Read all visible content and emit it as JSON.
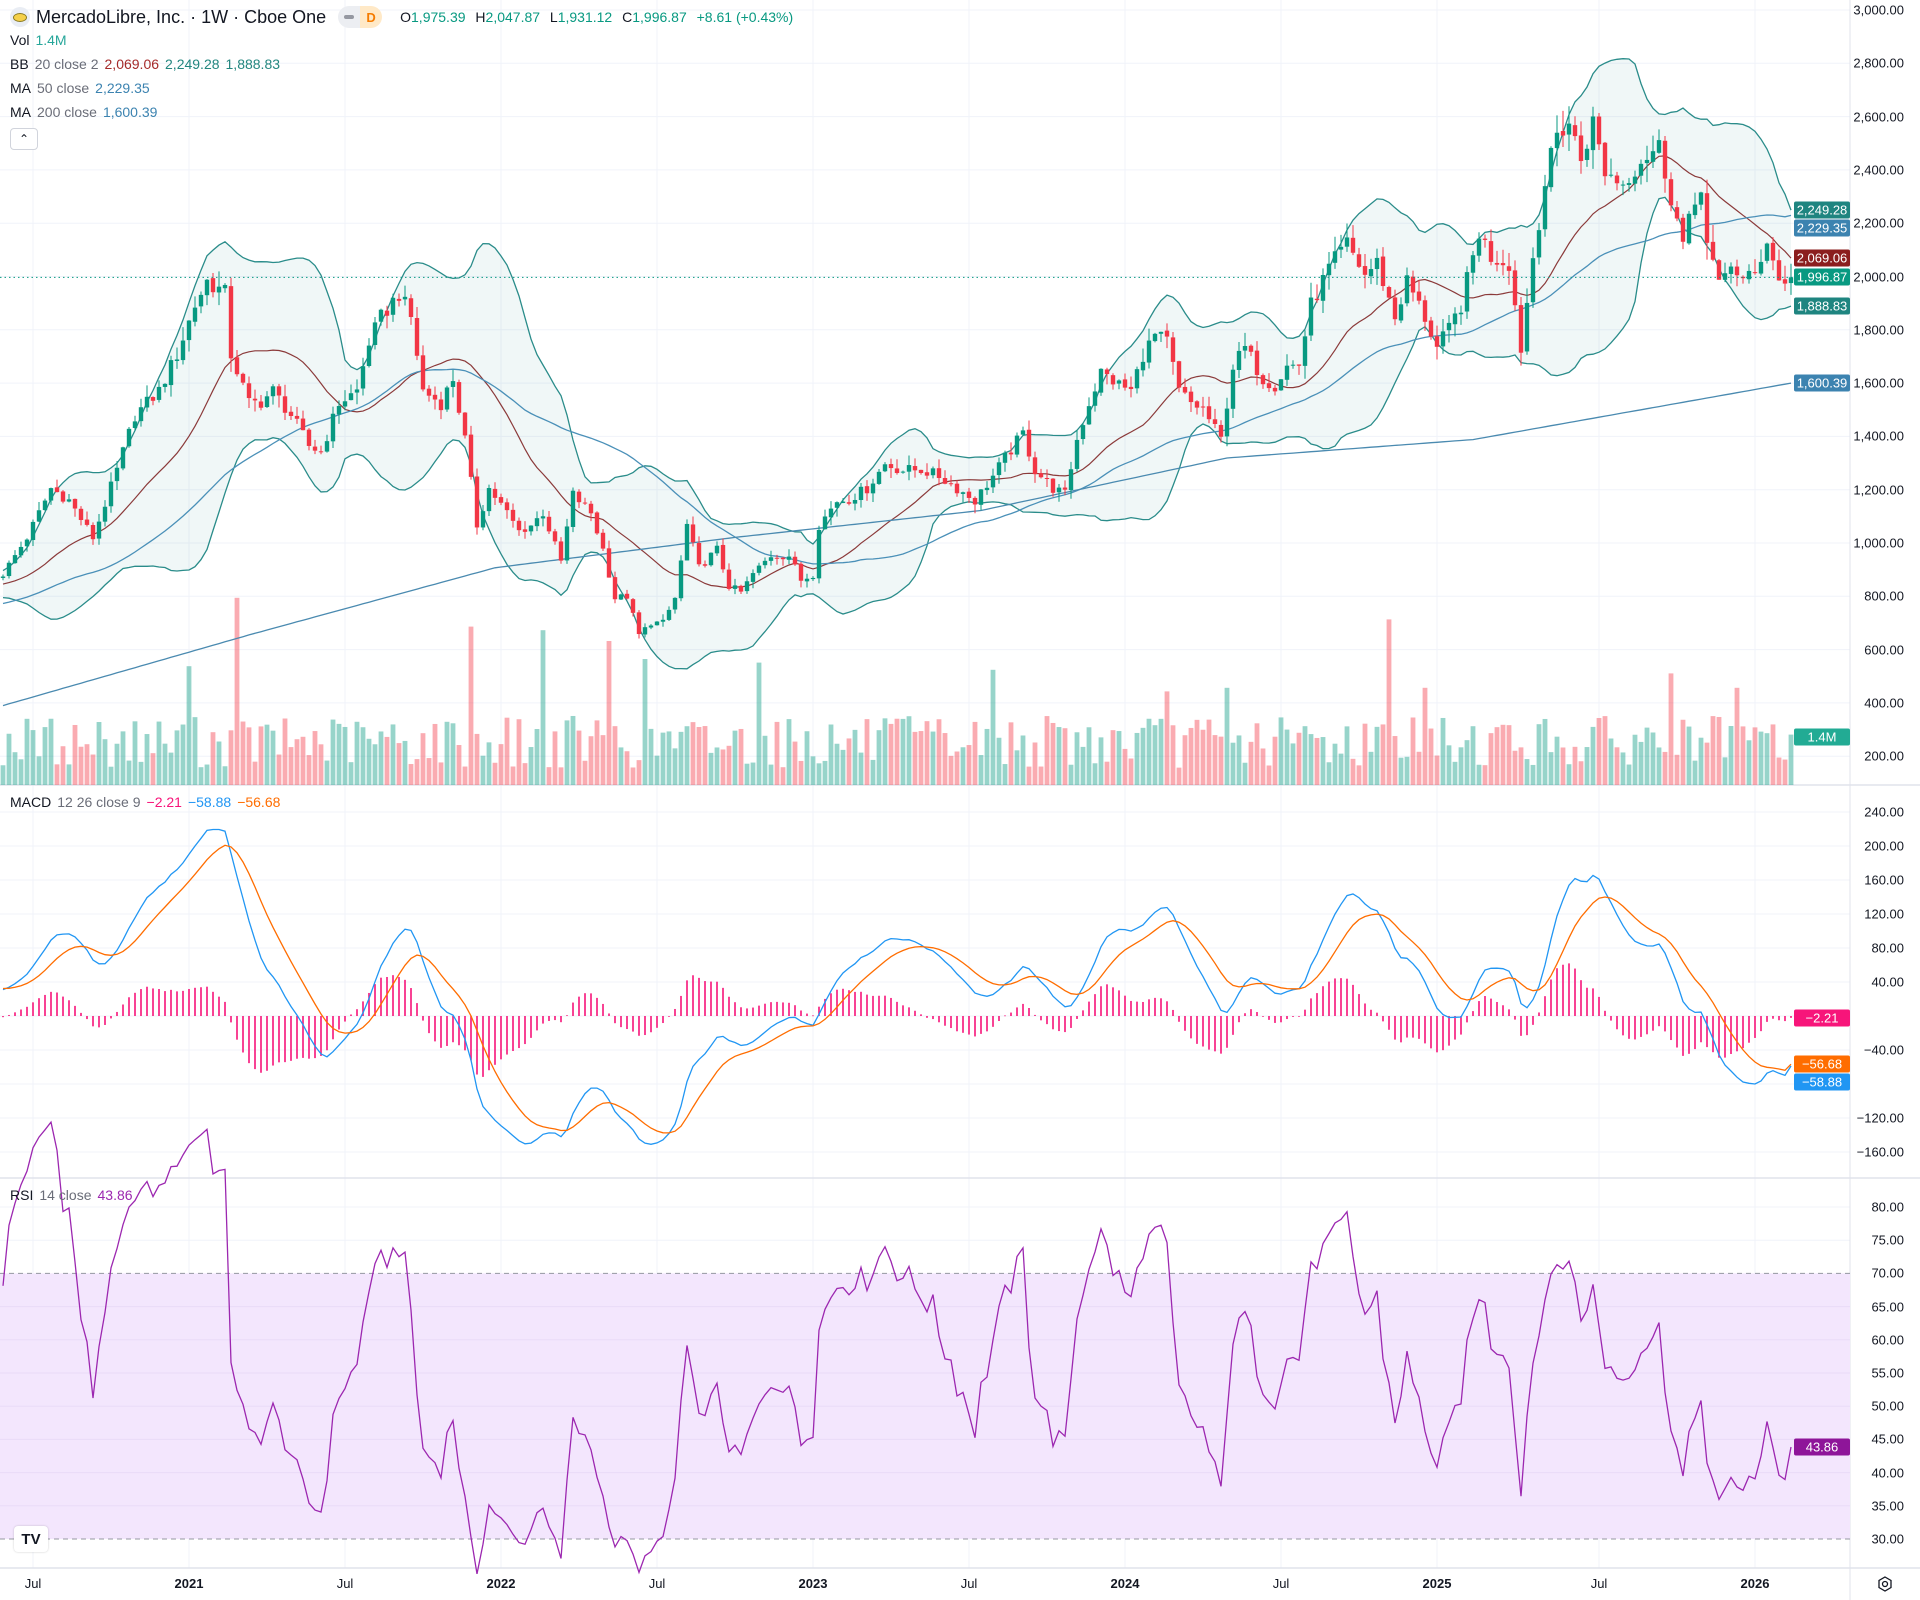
{
  "header": {
    "symbol_title": "MercadoLibre, Inc. · 1W · Cboe One",
    "badge_letter": "D",
    "open_label": "O",
    "open": "1,975.39",
    "high_label": "H",
    "high": "2,047.87",
    "low_label": "L",
    "low": "1,931.12",
    "close_label": "C",
    "close": "1,996.87",
    "change": "+8.61 (+0.43%)"
  },
  "legends": {
    "vol": {
      "name": "Vol",
      "value": "1.4M"
    },
    "bb": {
      "name": "BB",
      "params": "20 close 2",
      "basis": "2,069.06",
      "upper": "2,249.28",
      "lower": "1,888.83"
    },
    "ma50": {
      "name": "MA",
      "params": "50 close",
      "value": "2,229.35"
    },
    "ma200": {
      "name": "MA",
      "params": "200 close",
      "value": "1,600.39"
    },
    "macd": {
      "name": "MACD",
      "params": "12 26 close 9",
      "hist": "−2.21",
      "macd": "−58.88",
      "signal": "−56.68"
    },
    "rsi": {
      "name": "RSI",
      "params": "14 close",
      "value": "43.86"
    }
  },
  "collapse_icon": "chevron-up-icon",
  "tv_logo_text": "TV",
  "colors": {
    "up": "#089981",
    "down": "#F23645",
    "bb_band": "#2a8c8a",
    "bb_basis": "#8b3a3a",
    "bb_fill": "#f1f8f8",
    "ma50": "#4a90b8",
    "ma200": "#4a8ab0",
    "macd": "#2196F3",
    "signal": "#FF6D00",
    "hist": "#F7157A",
    "rsi": "#9C27B0",
    "rsi_band": "#f3e6fd"
  },
  "chart_data": [
    {
      "type": "candlestick",
      "title": "MercadoLibre, Inc. · 1W · Cboe One",
      "interval": "1W",
      "y_axis_ticks": [
        "3,000.00",
        "2,800.00",
        "2,600.00",
        "2,400.00",
        "2,200.00",
        "2,000.00",
        "1,800.00",
        "1,600.00",
        "1,400.00",
        "1,200.00",
        "1,000.00",
        "800.00",
        "600.00",
        "400.00",
        "200.00"
      ],
      "ylim": [
        200,
        3000
      ],
      "x_axis_ticks": [
        {
          "label": "Jul",
          "week": 5,
          "year": false
        },
        {
          "label": "2021",
          "week": 31,
          "year": true
        },
        {
          "label": "Jul",
          "week": 57,
          "year": false
        },
        {
          "label": "2022",
          "week": 83,
          "year": true
        },
        {
          "label": "Jul",
          "week": 109,
          "year": false
        },
        {
          "label": "2023",
          "week": 135,
          "year": true
        },
        {
          "label": "Jul",
          "week": 161,
          "year": false
        },
        {
          "label": "2024",
          "week": 187,
          "year": true
        },
        {
          "label": "Jul",
          "week": 213,
          "year": false
        },
        {
          "label": "2025",
          "week": 239,
          "year": true
        },
        {
          "label": "Jul",
          "week": 266,
          "year": false
        },
        {
          "label": "2026",
          "week": 292,
          "year": true
        }
      ],
      "weeks": 299,
      "close_anchors": [
        [
          0,
          884
        ],
        [
          4,
          1021
        ],
        [
          8,
          1205
        ],
        [
          11,
          1160
        ],
        [
          15,
          1020
        ],
        [
          19,
          1273
        ],
        [
          22,
          1480
        ],
        [
          26,
          1571
        ],
        [
          29,
          1708
        ],
        [
          32,
          1892
        ],
        [
          34,
          1983
        ],
        [
          37,
          1937
        ],
        [
          38,
          1708
        ],
        [
          41,
          1525
        ],
        [
          43,
          1530
        ],
        [
          45,
          1571
        ],
        [
          48,
          1480
        ],
        [
          51,
          1365
        ],
        [
          53,
          1342
        ],
        [
          56,
          1525
        ],
        [
          59,
          1571
        ],
        [
          61,
          1754
        ],
        [
          63,
          1846
        ],
        [
          66,
          1937
        ],
        [
          68,
          1846
        ],
        [
          70,
          1571
        ],
        [
          73,
          1525
        ],
        [
          75,
          1617
        ],
        [
          77,
          1388
        ],
        [
          79,
          1067
        ],
        [
          81,
          1205
        ],
        [
          84,
          1113
        ],
        [
          86,
          1044
        ],
        [
          88,
          1067
        ],
        [
          90,
          1113
        ],
        [
          93,
          930
        ],
        [
          95,
          1182
        ],
        [
          98,
          1113
        ],
        [
          100,
          976
        ],
        [
          102,
          793
        ],
        [
          104,
          800
        ],
        [
          106,
          655
        ],
        [
          108,
          701
        ],
        [
          110,
          701
        ],
        [
          112,
          793
        ],
        [
          114,
          1067
        ],
        [
          116,
          907
        ],
        [
          119,
          976
        ],
        [
          121,
          838
        ],
        [
          123,
          815
        ],
        [
          125,
          884
        ],
        [
          128,
          953
        ],
        [
          131,
          953
        ],
        [
          133,
          861
        ],
        [
          135,
          884
        ],
        [
          136,
          1067
        ],
        [
          139,
          1159
        ],
        [
          141,
          1165
        ],
        [
          144,
          1205
        ],
        [
          147,
          1296
        ],
        [
          150,
          1273
        ],
        [
          153,
          1275
        ],
        [
          156,
          1251
        ],
        [
          159,
          1205
        ],
        [
          162,
          1159
        ],
        [
          165,
          1251
        ],
        [
          167,
          1319
        ],
        [
          170,
          1411
        ],
        [
          172,
          1273
        ],
        [
          175,
          1205
        ],
        [
          177,
          1182
        ],
        [
          179,
          1388
        ],
        [
          181,
          1525
        ],
        [
          183,
          1640
        ],
        [
          186,
          1594
        ],
        [
          188,
          1571
        ],
        [
          190,
          1708
        ],
        [
          192,
          1777
        ],
        [
          194,
          1754
        ],
        [
          196,
          1571
        ],
        [
          198,
          1525
        ],
        [
          200,
          1502
        ],
        [
          203,
          1388
        ],
        [
          205,
          1663
        ],
        [
          207,
          1731
        ],
        [
          210,
          1617
        ],
        [
          212,
          1594
        ],
        [
          214,
          1663
        ],
        [
          216,
          1670
        ],
        [
          218,
          1892
        ],
        [
          221,
          2029
        ],
        [
          224,
          2121
        ],
        [
          227,
          2006
        ],
        [
          229,
          2052
        ],
        [
          232,
          1846
        ],
        [
          234,
          1983
        ],
        [
          237,
          1846
        ],
        [
          239,
          1731
        ],
        [
          241,
          1800
        ],
        [
          243,
          1892
        ],
        [
          246,
          2166
        ],
        [
          248,
          2075
        ],
        [
          251,
          2052
        ],
        [
          253,
          1731
        ],
        [
          255,
          2075
        ],
        [
          257,
          2350
        ],
        [
          259,
          2533
        ],
        [
          261,
          2579
        ],
        [
          263,
          2441
        ],
        [
          265,
          2579
        ],
        [
          267,
          2395
        ],
        [
          270,
          2350
        ],
        [
          273,
          2441
        ],
        [
          276,
          2487
        ],
        [
          278,
          2304
        ],
        [
          280,
          2121
        ],
        [
          283,
          2350
        ],
        [
          284,
          2121
        ],
        [
          286,
          1960
        ],
        [
          288,
          2052
        ],
        [
          290,
          1983
        ],
        [
          292,
          2006
        ],
        [
          294,
          2143
        ],
        [
          296,
          1983
        ],
        [
          298,
          1997
        ]
      ],
      "last_bar": {
        "open": 1975.39,
        "high": 2047.87,
        "low": 1931.12,
        "close": 1996.87
      },
      "ma200_anchors": [
        [
          0,
          390
        ],
        [
          41,
          655
        ],
        [
          82,
          907
        ],
        [
          122,
          1021
        ],
        [
          163,
          1122
        ],
        [
          204,
          1319
        ],
        [
          245,
          1388
        ],
        [
          298,
          1600
        ]
      ],
      "volume_millions_spikes": [
        [
          31,
          3.3
        ],
        [
          39,
          5.2
        ],
        [
          78,
          4.4
        ],
        [
          90,
          4.3
        ],
        [
          101,
          4.0
        ],
        [
          107,
          3.5
        ],
        [
          126,
          3.4
        ],
        [
          165,
          3.2
        ],
        [
          194,
          2.6
        ],
        [
          204,
          2.7
        ],
        [
          231,
          4.6
        ],
        [
          237,
          2.7
        ],
        [
          278,
          3.1
        ],
        [
          289,
          2.7
        ]
      ],
      "volume_base_millions": 1.6,
      "last_volume": 1.4,
      "last_values": {
        "bb_upper": 2249.28,
        "ma50": 2229.35,
        "bb_basis": 2069.06,
        "close": 1996.87,
        "bb_lower": 1888.83,
        "ma200": 1600.39
      }
    },
    {
      "type": "line",
      "title": "MACD 12 26 close 9",
      "y_axis_ticks": [
        "240.00",
        "200.00",
        "160.00",
        "120.00",
        "80.00",
        "40.00",
        "−40.00",
        "−120.00",
        "−160.00"
      ],
      "ylim": [
        -180,
        260
      ],
      "last_values": {
        "hist": -2.21,
        "macd": -58.88,
        "signal": -56.68
      }
    },
    {
      "type": "line",
      "title": "RSI 14 close",
      "y_axis_ticks": [
        "80.00",
        "75.00",
        "70.00",
        "65.00",
        "60.00",
        "55.00",
        "50.00",
        "45.00",
        "40.00",
        "35.00",
        "30.00"
      ],
      "bands": [
        30,
        70
      ],
      "last_value": 43.86
    }
  ]
}
